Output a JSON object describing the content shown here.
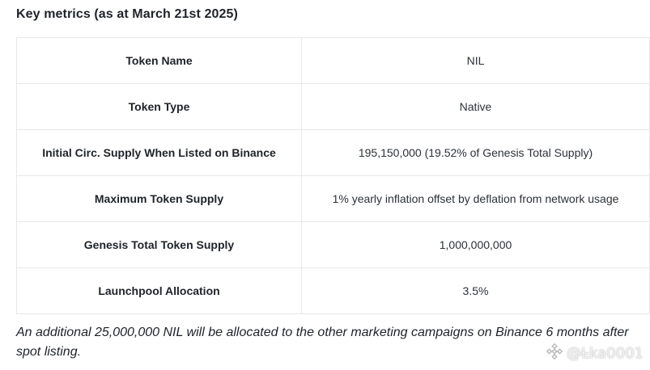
{
  "heading": "Key metrics (as at March 21st 2025)",
  "rows": [
    {
      "label": "Token Name",
      "value": "NIL"
    },
    {
      "label": "Token Type",
      "value": "Native"
    },
    {
      "label": "Initial Circ. Supply When Listed on Binance",
      "value": "195,150,000 (19.52% of Genesis Total Supply)"
    },
    {
      "label": "Maximum Token Supply",
      "value": "1% yearly inflation offset by deflation from network usage"
    },
    {
      "label": "Genesis Total Token Supply",
      "value": "1,000,000,000"
    },
    {
      "label": "Launchpool Allocation",
      "value": "3.5%"
    }
  ],
  "note": "An additional 25,000,000 NIL will be allocated to the other marketing campaigns on Binance 6 months after spot listing.",
  "watermark": {
    "icon": "binance-diamond-icon",
    "handle": "@L̴ka0001"
  },
  "colors": {
    "text": "#1e2329",
    "border": "#e6e8ea",
    "background": "#ffffff"
  }
}
